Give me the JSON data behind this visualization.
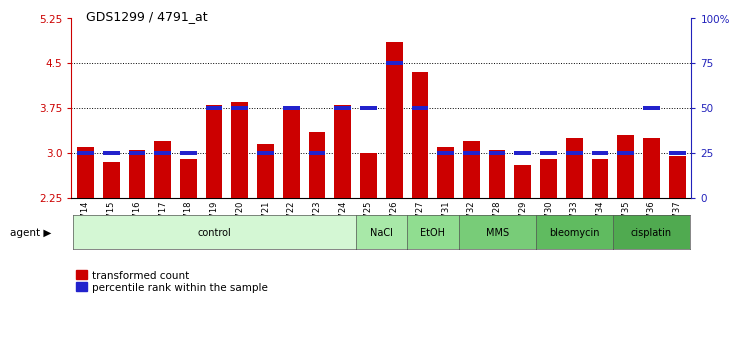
{
  "title": "GDS1299 / 4791_at",
  "samples": [
    "GSM40714",
    "GSM40715",
    "GSM40716",
    "GSM40717",
    "GSM40718",
    "GSM40719",
    "GSM40720",
    "GSM40721",
    "GSM40722",
    "GSM40723",
    "GSM40724",
    "GSM40725",
    "GSM40726",
    "GSM40727",
    "GSM40731",
    "GSM40732",
    "GSM40728",
    "GSM40729",
    "GSM40730",
    "GSM40733",
    "GSM40734",
    "GSM40735",
    "GSM40736",
    "GSM40737"
  ],
  "transformed_count": [
    3.1,
    2.85,
    3.05,
    3.2,
    2.9,
    3.8,
    3.85,
    3.15,
    3.75,
    3.35,
    3.8,
    3.0,
    4.85,
    4.35,
    3.1,
    3.2,
    3.05,
    2.8,
    2.9,
    3.25,
    2.9,
    3.3,
    3.25,
    2.95
  ],
  "percentile_values": [
    25,
    25,
    25,
    25,
    25,
    50,
    50,
    25,
    50,
    25,
    50,
    50,
    75,
    50,
    25,
    25,
    25,
    25,
    25,
    25,
    25,
    25,
    50,
    25
  ],
  "agents": [
    {
      "label": "control",
      "start": 0,
      "end": 11,
      "color": "#d4f7d4"
    },
    {
      "label": "NaCl",
      "start": 11,
      "end": 13,
      "color": "#a8e8a8"
    },
    {
      "label": "EtOH",
      "start": 13,
      "end": 15,
      "color": "#90dd90"
    },
    {
      "label": "MMS",
      "start": 15,
      "end": 18,
      "color": "#78cc78"
    },
    {
      "label": "bleomycin",
      "start": 18,
      "end": 21,
      "color": "#60bb60"
    },
    {
      "label": "cisplatin",
      "start": 21,
      "end": 24,
      "color": "#50aa50"
    }
  ],
  "bar_color": "#cc0000",
  "blue_color": "#2222cc",
  "ylim_left": [
    2.25,
    5.25
  ],
  "yticks_left": [
    2.25,
    3.0,
    3.75,
    4.5,
    5.25
  ],
  "yticks_right": [
    0,
    25,
    50,
    75,
    100
  ],
  "bar_width": 0.65,
  "left_axis_color": "#cc0000",
  "right_axis_color": "#2222bb"
}
